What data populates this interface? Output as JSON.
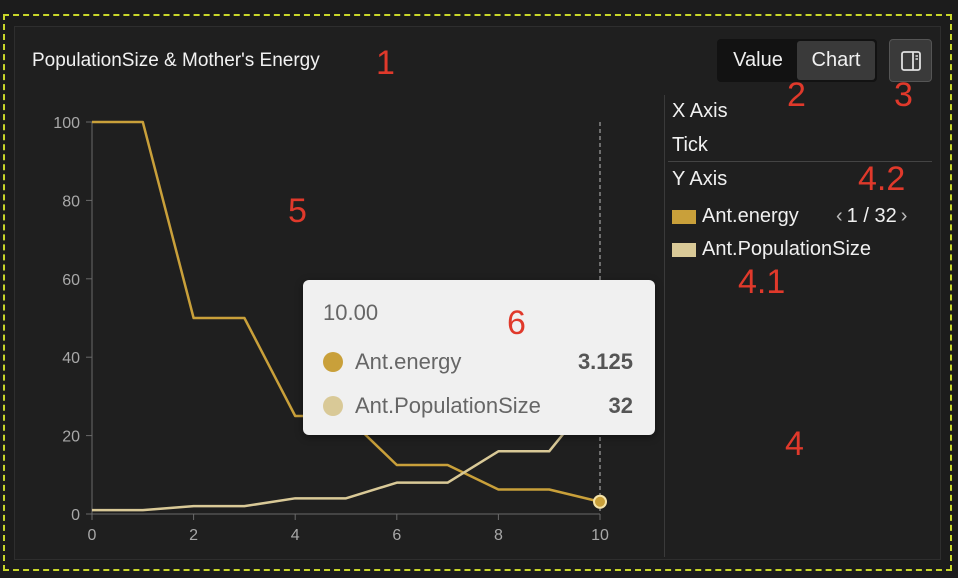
{
  "panel": {
    "title": "PopulationSize & Mother's Energy"
  },
  "view_toggle": {
    "options": [
      "Value",
      "Chart"
    ],
    "selected": "Chart"
  },
  "side_panel": {
    "x_axis_label": "X Axis",
    "x_axis_value": "Tick",
    "y_axis_label": "Y Axis",
    "legend": [
      {
        "name": "Ant.energy",
        "color": "#c9a03a"
      },
      {
        "name": "Ant.PopulationSize",
        "color": "#d9c997"
      }
    ],
    "pager": "1 / 32"
  },
  "annotations": [
    "1",
    "2",
    "3",
    "4",
    "4.1",
    "4.2",
    "5",
    "6"
  ],
  "tooltip": {
    "x": "10.00",
    "rows": [
      {
        "name": "Ant.energy",
        "value": "3.125",
        "color": "#c9a03a"
      },
      {
        "name": "Ant.PopulationSize",
        "value": "32",
        "color": "#d9c997"
      }
    ]
  },
  "chart_data": {
    "type": "line",
    "x": [
      0,
      1,
      2,
      3,
      4,
      5,
      6,
      7,
      8,
      9,
      10
    ],
    "xticks": [
      0,
      2,
      4,
      6,
      8,
      10
    ],
    "yticks": [
      0,
      20,
      40,
      60,
      80,
      100
    ],
    "xlim": [
      0,
      10
    ],
    "ylim": [
      0,
      100
    ],
    "grid": false,
    "series": [
      {
        "name": "Ant.energy",
        "color": "#c9a03a",
        "values": [
          100,
          100,
          50,
          50,
          25,
          25,
          12.5,
          12.5,
          6.25,
          6.25,
          3.125
        ]
      },
      {
        "name": "Ant.PopulationSize",
        "color": "#d9c997",
        "values": [
          1,
          1,
          2,
          2,
          4,
          4,
          8,
          8,
          16,
          16,
          32
        ]
      }
    ],
    "hover_x": 10
  }
}
